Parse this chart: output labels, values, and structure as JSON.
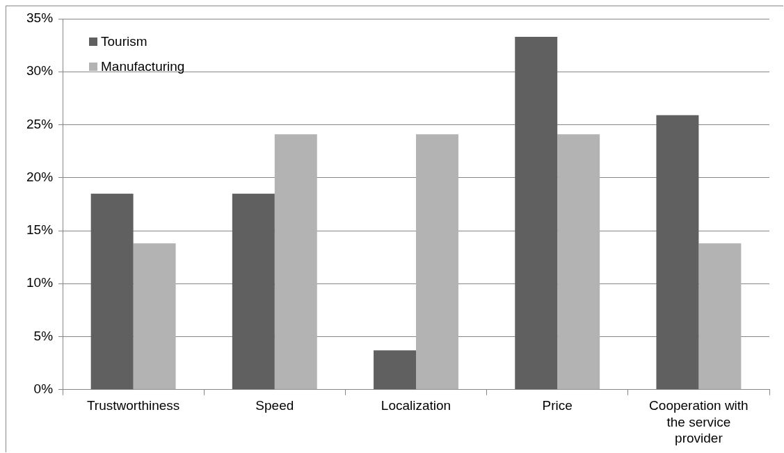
{
  "chart_data": {
    "type": "bar",
    "categories": [
      "Trustworthiness",
      "Speed",
      "Localization",
      "Price",
      "Cooperation with the service provider"
    ],
    "series": [
      {
        "name": "Tourism",
        "color": "#606060",
        "values": [
          18.5,
          18.5,
          3.7,
          33.3,
          25.9
        ]
      },
      {
        "name": "Manufacturing",
        "color": "#b3b3b3",
        "values": [
          13.8,
          24.1,
          24.1,
          24.1,
          13.8
        ]
      }
    ],
    "ylim": [
      0,
      35
    ],
    "yticks": [
      {
        "value": 0,
        "label": "0%"
      },
      {
        "value": 5,
        "label": "5%"
      },
      {
        "value": 10,
        "label": "10%"
      },
      {
        "value": 15,
        "label": "15%"
      },
      {
        "value": 20,
        "label": "20%"
      },
      {
        "value": 25,
        "label": "25%"
      },
      {
        "value": 30,
        "label": "30%"
      },
      {
        "value": 35,
        "label": "35%"
      }
    ],
    "grid": "y",
    "legend": "top left"
  }
}
